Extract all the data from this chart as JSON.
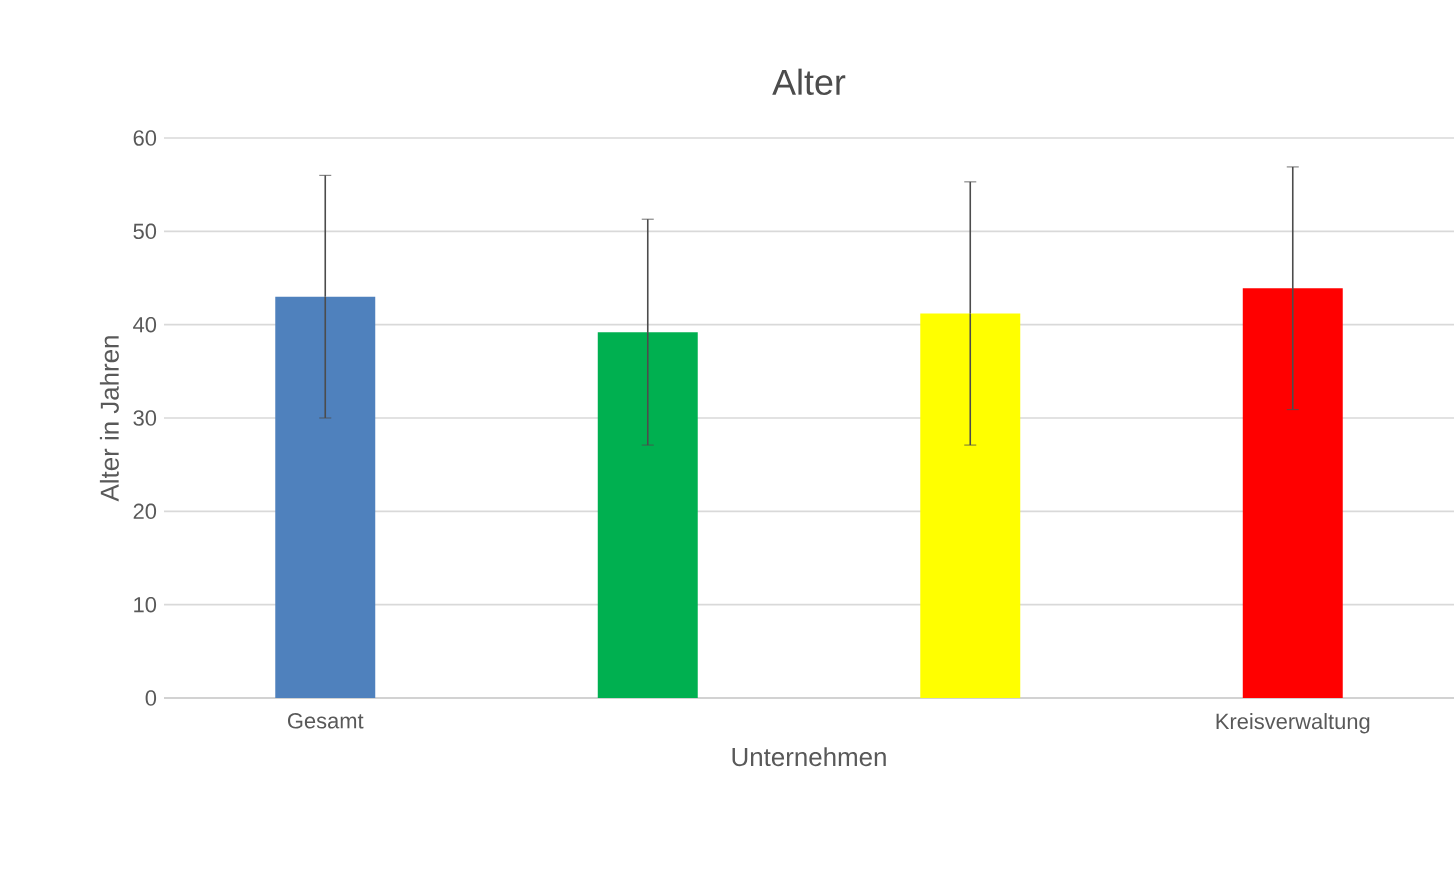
{
  "chart_data": {
    "type": "bar",
    "title": "Alter",
    "xlabel": "Unternehmen",
    "ylabel": "Alter in Jahren",
    "categories": [
      "Gesamt",
      null,
      null,
      "Kreisverwaltung"
    ],
    "values": [
      43,
      39.2,
      41.2,
      43.9
    ],
    "errors": [
      13,
      12.1,
      14.1,
      13
    ],
    "colors": [
      "#4f81bd",
      "#00b050",
      "#ffff00",
      "#ff0000"
    ],
    "ylim": [
      0,
      60
    ],
    "yticks": [
      0,
      10,
      20,
      30,
      40,
      50,
      60
    ],
    "grid": "y"
  }
}
